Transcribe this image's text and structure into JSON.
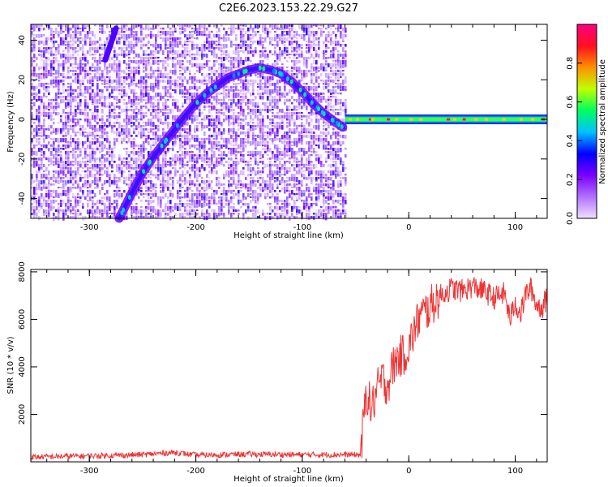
{
  "figure": {
    "title": "C2E6.2023.153.22.29.G27"
  },
  "chart_data": [
    {
      "type": "heatmap",
      "title": "C2E6.2023.153.22.29.G27",
      "xlabel": "Height of straight line (km)",
      "ylabel": "Frequency (Hz)",
      "xlim": [
        -355,
        130
      ],
      "ylim": [
        -50,
        48
      ],
      "xticks": [
        -300,
        -200,
        -100,
        0,
        100
      ],
      "yticks": [
        -40,
        -20,
        0,
        20,
        40
      ],
      "colorbar": {
        "label": "Normalized spectral amplitude",
        "range": [
          0,
          1
        ],
        "ticks": [
          0.0,
          0.2,
          0.4,
          0.6,
          0.8
        ],
        "colormap": [
          "#f0e0ff",
          "#b070ff",
          "#7a00ff",
          "#0000ff",
          "#00c0ff",
          "#00ff60",
          "#c0ff00",
          "#ff9000",
          "#ff1020",
          "#ff0080"
        ]
      },
      "noise_region_x": [
        -355,
        -60
      ],
      "signal_curve": {
        "x": [
          -272,
          -260,
          -250,
          -240,
          -230,
          -220,
          -210,
          -200,
          -190,
          -180,
          -170,
          -160,
          -150,
          -140,
          -130,
          -120,
          -110,
          -100,
          -90,
          -80,
          -70,
          -62
        ],
        "y": [
          -50,
          -37,
          -27,
          -19,
          -12,
          -5,
          2,
          8,
          13,
          17,
          21,
          23,
          25,
          26,
          25,
          23,
          19,
          14,
          8,
          3,
          -1,
          -4
        ]
      },
      "upper_branch": {
        "x": [
          -285,
          -280,
          -275
        ],
        "y": [
          30,
          38,
          46
        ]
      },
      "carrier_line": {
        "x": [
          -60,
          130
        ],
        "y": [
          0,
          0
        ]
      }
    },
    {
      "type": "line",
      "xlabel": "Height of straight line (km)",
      "ylabel": "SNR (10 * v/v)",
      "xlim": [
        -355,
        130
      ],
      "ylim": [
        0,
        8100
      ],
      "xticks": [
        -300,
        -200,
        -100,
        0,
        100
      ],
      "yticks": [
        2000,
        4000,
        6000,
        8000
      ],
      "series": [
        {
          "color": "#ee3333",
          "x": [
            -355,
            -300,
            -250,
            -220,
            -200,
            -150,
            -100,
            -60,
            -45,
            -40,
            -35,
            -30,
            -25,
            -20,
            -15,
            -10,
            -5,
            0,
            5,
            10,
            15,
            20,
            25,
            30,
            40,
            50,
            60,
            70,
            80,
            90,
            95,
            100,
            105,
            110,
            115,
            120,
            125,
            130
          ],
          "y": [
            200,
            250,
            300,
            400,
            280,
            320,
            300,
            300,
            300,
            3000,
            2200,
            3000,
            3500,
            3200,
            4000,
            4400,
            4500,
            4800,
            5500,
            6100,
            6300,
            6500,
            6800,
            7000,
            7300,
            7200,
            7400,
            7200,
            6900,
            7100,
            6000,
            6700,
            6200,
            7100,
            7300,
            6600,
            6500,
            6900
          ]
        }
      ]
    }
  ]
}
